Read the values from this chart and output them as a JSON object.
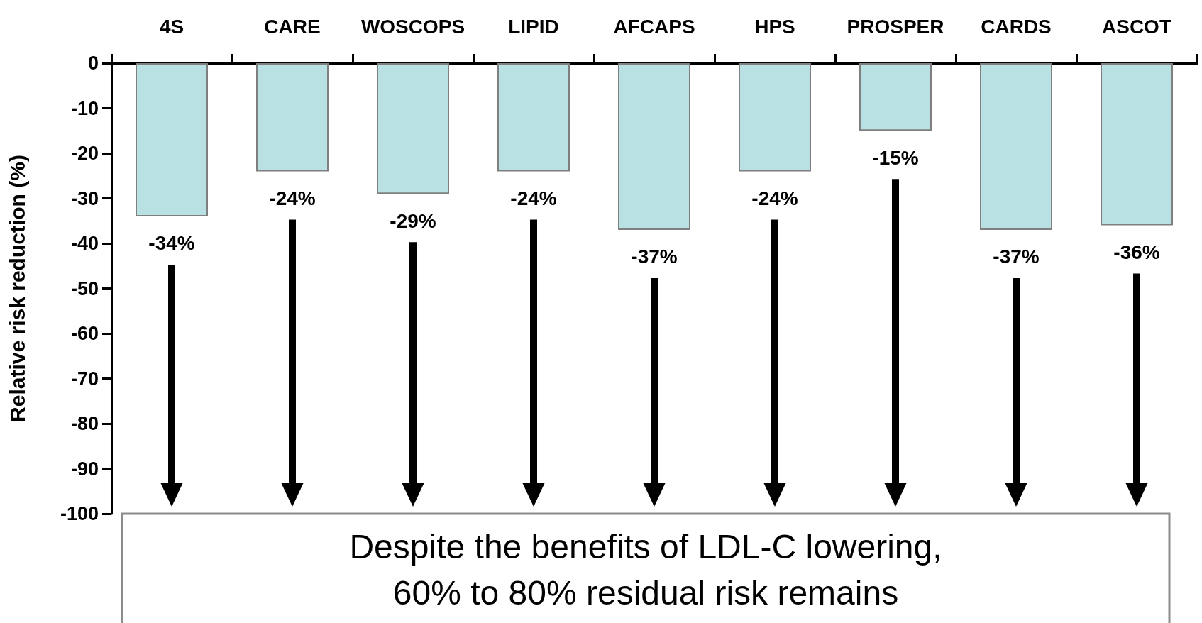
{
  "chart_data": {
    "type": "bar",
    "ylabel": "Relative risk reduction (%)",
    "categories": [
      "4S",
      "CARE",
      "WOSCOPS",
      "LIPID",
      "AFCAPS",
      "HPS",
      "PROSPER",
      "CARDS",
      "ASCOT"
    ],
    "values": [
      -34,
      -24,
      -29,
      -24,
      -37,
      -24,
      -15,
      -37,
      -36
    ],
    "value_labels": [
      "-34%",
      "-24%",
      "-29%",
      "-24%",
      "-37%",
      "-24%",
      "-15%",
      "-37%",
      "-36%"
    ],
    "color": "#b9e0e2",
    "ylim": [
      -100,
      0
    ],
    "yticks": [
      0,
      -10,
      -20,
      -30,
      -40,
      -50,
      -60,
      -70,
      -80,
      -90,
      -100
    ],
    "grid": false,
    "annotations": [
      "Despite the benefits of LDL-C lowering,\n60% to 80% residual risk remains"
    ]
  }
}
